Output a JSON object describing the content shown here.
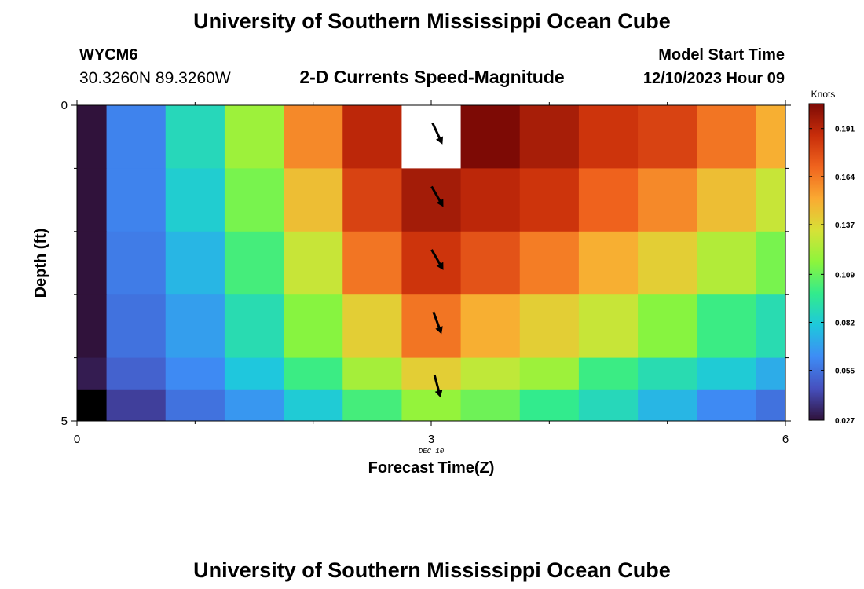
{
  "header": {
    "title": "University of Southern Mississippi Ocean Cube",
    "station": "WYCM6",
    "coords": "30.3260N  89.3260W",
    "subtitle": "2-D Currents Speed-Magnitude",
    "model_label": "Model Start Time",
    "model_time": "12/10/2023 Hour 09",
    "bottom_title": "University of Southern Mississippi Ocean Cube"
  },
  "chart_data": {
    "type": "heatmap",
    "title": "2-D Currents Speed-Magnitude",
    "xlabel": "Forecast Time(Z)",
    "ylabel": "Depth (ft)",
    "date_label": "DEC 10",
    "xlim": [
      0,
      6
    ],
    "ylim": [
      0,
      5
    ],
    "x_ticks": [
      {
        "value": 0,
        "label": "0"
      },
      {
        "value": 3,
        "label": "3"
      },
      {
        "value": 6,
        "label": "6"
      }
    ],
    "y_ticks": [
      {
        "value": 0,
        "label": "0"
      },
      {
        "value": 5,
        "label": "5"
      }
    ],
    "x_minor_ticks": [
      1,
      2,
      4,
      5
    ],
    "y_minor_ticks": [
      1,
      2,
      3,
      4
    ],
    "time_bounds": [
      0,
      0.25,
      0.75,
      1.25,
      1.75,
      2.25,
      2.75,
      3.25,
      3.75,
      4.25,
      4.75,
      5.25,
      5.75,
      6
    ],
    "depth_bounds": [
      0,
      1,
      2,
      3,
      4,
      4.5,
      5
    ],
    "values": [
      [
        0.025,
        0.06,
        0.088,
        0.12,
        0.16,
        0.19,
        null,
        0.205,
        0.195,
        0.185,
        0.18,
        0.165,
        0.15
      ],
      [
        0.025,
        0.06,
        0.083,
        0.112,
        0.145,
        0.18,
        0.196,
        0.19,
        0.185,
        0.17,
        0.16,
        0.145,
        0.13
      ],
      [
        0.025,
        0.058,
        0.075,
        0.102,
        0.13,
        0.165,
        0.185,
        0.175,
        0.163,
        0.15,
        0.14,
        0.125,
        0.112
      ],
      [
        0.025,
        0.055,
        0.068,
        0.09,
        0.115,
        0.14,
        0.165,
        0.15,
        0.14,
        0.13,
        0.115,
        0.1,
        0.09
      ],
      [
        0.03,
        0.05,
        0.062,
        0.08,
        0.1,
        0.122,
        0.14,
        0.128,
        0.12,
        0.1,
        0.09,
        0.082,
        0.072
      ],
      [
        0.0,
        0.04,
        0.055,
        0.066,
        0.082,
        0.102,
        0.118,
        0.11,
        0.098,
        0.088,
        0.075,
        0.062,
        0.055
      ]
    ],
    "arrows": [
      {
        "time": 3.0,
        "depth": 0.3,
        "direction_deg": 155
      },
      {
        "time": 3.0,
        "depth": 1.3,
        "direction_deg": 150
      },
      {
        "time": 3.0,
        "depth": 2.3,
        "direction_deg": 150
      },
      {
        "time": 3.0,
        "depth": 3.3,
        "direction_deg": 160
      },
      {
        "time": 3.0,
        "depth": 4.3,
        "direction_deg": 165
      }
    ],
    "colorbar": {
      "title": "Knots",
      "range": [
        0.027,
        0.205
      ],
      "ticks": [
        0.027,
        0.055,
        0.082,
        0.109,
        0.137,
        0.164,
        0.191
      ],
      "tick_labels": [
        "0.027",
        "0.055",
        "0.082",
        "0.109",
        "0.137",
        "0.164",
        "0.191"
      ]
    }
  }
}
